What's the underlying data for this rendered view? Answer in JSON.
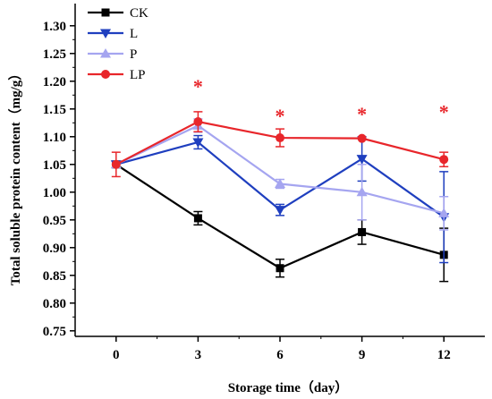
{
  "chart_data": {
    "type": "line",
    "xlabel": "Storage time（day）",
    "ylabel": "Total soluble protein content（mg/g）",
    "x": [
      0,
      3,
      6,
      9,
      12
    ],
    "xlim": [
      -1.5,
      13.5
    ],
    "ylim": [
      0.74,
      1.34
    ],
    "yticks": [
      "0.75",
      "0.80",
      "0.85",
      "0.90",
      "0.95",
      "1.00",
      "1.05",
      "1.10",
      "1.15",
      "1.20",
      "1.25",
      "1.30"
    ],
    "xticks": [
      "0",
      "3",
      "6",
      "9",
      "12"
    ],
    "legend_position": "top-left",
    "grid": false,
    "series": [
      {
        "name": "CK",
        "color": "#000000",
        "marker": "square",
        "values": [
          1.05,
          0.953,
          0.863,
          0.928,
          0.887
        ],
        "errors": [
          0.0,
          0.012,
          0.016,
          0.022,
          0.048
        ]
      },
      {
        "name": "L",
        "color": "#1f3fbf",
        "marker": "triangle-down",
        "values": [
          1.05,
          1.09,
          0.968,
          1.06,
          0.955
        ],
        "errors": [
          0.0,
          0.012,
          0.01,
          0.04,
          0.082
        ]
      },
      {
        "name": "P",
        "color": "#a5a5f0",
        "marker": "triangle-up",
        "values": [
          1.05,
          1.12,
          1.015,
          1.0,
          0.962
        ],
        "errors": [
          0.0,
          0.012,
          0.008,
          0.05,
          0.03
        ]
      },
      {
        "name": "LP",
        "color": "#e8262b",
        "marker": "circle",
        "values": [
          1.05,
          1.127,
          1.098,
          1.097,
          1.059
        ],
        "errors": [
          0.022,
          0.018,
          0.016,
          0.0,
          0.013
        ]
      }
    ],
    "annotations": [
      {
        "text": "*",
        "x": 3,
        "color": "#e8262b"
      },
      {
        "text": "*",
        "x": 6,
        "color": "#e8262b"
      },
      {
        "text": "*",
        "x": 9,
        "color": "#e8262b"
      },
      {
        "text": "*",
        "x": 12,
        "color": "#e8262b"
      }
    ]
  }
}
